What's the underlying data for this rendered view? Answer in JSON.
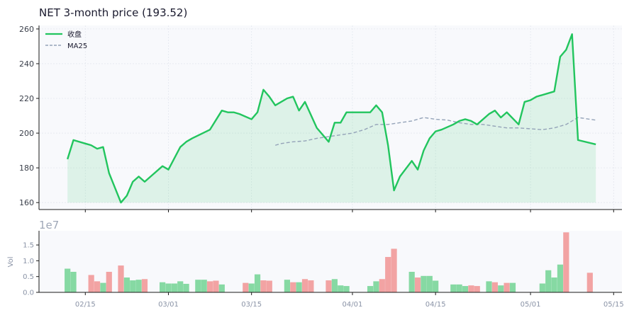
{
  "chart_data": [
    {
      "type": "line",
      "title": "NET  3-month price (193.52)",
      "ylim": [
        156,
        262
      ],
      "yticks": [
        160,
        180,
        200,
        220,
        240,
        260
      ],
      "xticks": [
        {
          "label": "02/15",
          "day": 45
        },
        {
          "label": "03/01",
          "day": 59
        },
        {
          "label": "03/15",
          "day": 73
        },
        {
          "label": "04/01",
          "day": 90
        },
        {
          "label": "04/15",
          "day": 104
        },
        {
          "label": "05/01",
          "day": 120
        },
        {
          "label": "05/15",
          "day": 134
        }
      ],
      "xlim": [
        37.2,
        135.4
      ],
      "legend_position": "top-left",
      "grid": true,
      "colors": {
        "price": "#22c55e",
        "ma": "#94a3b8",
        "fill": "#22c55e"
      },
      "series": [
        {
          "name": "收盘",
          "role": "price",
          "x": [
            42,
            43,
            45,
            46,
            47,
            48,
            49,
            51,
            52,
            53,
            54,
            55,
            56,
            58,
            59,
            61,
            62,
            63,
            66,
            68,
            69,
            70,
            71,
            73,
            74,
            75,
            76,
            77,
            79,
            80,
            81,
            82,
            84,
            86,
            87,
            88,
            89,
            90,
            93,
            94,
            95,
            96,
            97,
            98,
            100,
            101,
            102,
            103,
            104,
            105,
            107,
            108,
            109,
            110,
            111,
            113,
            114,
            115,
            116,
            118,
            119,
            120,
            121,
            124,
            125,
            126,
            127,
            128,
            131
          ],
          "y": [
            185,
            196,
            194,
            193,
            191,
            192,
            177,
            160,
            164,
            172,
            175,
            172,
            175,
            181,
            179,
            192,
            195,
            197,
            202,
            213,
            212,
            212,
            211,
            208,
            212,
            225,
            221,
            216,
            220,
            221,
            213,
            218,
            203,
            195,
            206,
            206,
            212,
            212,
            212,
            216,
            212,
            193,
            167,
            175,
            184,
            179,
            190,
            197,
            201,
            202,
            205,
            207,
            208,
            207,
            205,
            211,
            213,
            209,
            212,
            205,
            218,
            219,
            221,
            224,
            244,
            248,
            257,
            196,
            193.52
          ]
        },
        {
          "name": "MA25",
          "role": "ma",
          "x": [
            77,
            78,
            80,
            82,
            84,
            86,
            88,
            90,
            92,
            94,
            96,
            98,
            100,
            102,
            104,
            106,
            108,
            110,
            112,
            114,
            116,
            118,
            120,
            122,
            124,
            126,
            128,
            131
          ],
          "y": [
            193,
            194,
            195,
            195.5,
            197,
            198,
            199,
            200,
            202,
            205,
            205,
            206,
            207,
            209,
            208,
            207.5,
            206,
            205,
            205,
            204,
            203,
            203,
            202.5,
            202,
            203,
            205,
            209,
            207.5
          ]
        }
      ]
    },
    {
      "type": "bar",
      "ylabel": "Vol",
      "scale_note": "1e7",
      "ylim": [
        0,
        1.95
      ],
      "yticks": [
        {
          "value": 0,
          "label": "0.0"
        },
        {
          "value": 0.5,
          "label": "0.5"
        },
        {
          "value": 1.0,
          "label": "1.0"
        },
        {
          "value": 1.5,
          "label": "1.5"
        }
      ],
      "colors": {
        "up": "#86d9a3",
        "down": "#f2a3a3"
      },
      "day": [
        42,
        43,
        46,
        47,
        48,
        49,
        51,
        52,
        53,
        54,
        55,
        58,
        59,
        60,
        61,
        62,
        64,
        65,
        66,
        67,
        68,
        69,
        72,
        73,
        74,
        75,
        76,
        77,
        79,
        80,
        81,
        82,
        83,
        86,
        87,
        88,
        89,
        93,
        94,
        95,
        96,
        97,
        100,
        101,
        102,
        103,
        104,
        105,
        107,
        108,
        109,
        110,
        111,
        113,
        114,
        115,
        116,
        117,
        118,
        119,
        120,
        122,
        123,
        124,
        125,
        126,
        127,
        130
      ],
      "value": [
        0.75,
        0.65,
        0.55,
        0.35,
        0.3,
        0.65,
        0.85,
        0.47,
        0.38,
        0.4,
        0.42,
        0.32,
        0.28,
        0.28,
        0.35,
        0.27,
        0.4,
        0.4,
        0.35,
        0.37,
        0.25,
        0,
        0.3,
        0.28,
        0.57,
        0.38,
        0.37,
        0,
        0.4,
        0.32,
        0.32,
        0.42,
        0.38,
        0.38,
        0.42,
        0.22,
        0.2,
        0.2,
        0.35,
        0.42,
        1.12,
        1.38,
        0.65,
        0.47,
        0.52,
        0.52,
        0.37,
        0,
        0.25,
        0.25,
        0.2,
        0.22,
        0.2,
        0.35,
        0.32,
        0.22,
        0.3,
        0.3,
        0,
        0,
        0,
        0.28,
        0.7,
        0.47,
        0.88,
        1.9,
        0,
        0.62
      ],
      "direction": [
        "up",
        "up",
        "down",
        "down",
        "up",
        "down",
        "down",
        "up",
        "up",
        "up",
        "down",
        "up",
        "up",
        "up",
        "up",
        "up",
        "up",
        "up",
        "down",
        "down",
        "up",
        "up",
        "down",
        "up",
        "up",
        "down",
        "down",
        "up",
        "up",
        "down",
        "up",
        "down",
        "down",
        "down",
        "up",
        "up",
        "up",
        "up",
        "up",
        "down",
        "down",
        "down",
        "up",
        "down",
        "up",
        "up",
        "up",
        "up",
        "up",
        "up",
        "up",
        "down",
        "down",
        "up",
        "down",
        "up",
        "down",
        "up",
        "up",
        "up",
        "up",
        "up",
        "up",
        "up",
        "up",
        "down",
        "up",
        "down"
      ]
    }
  ]
}
